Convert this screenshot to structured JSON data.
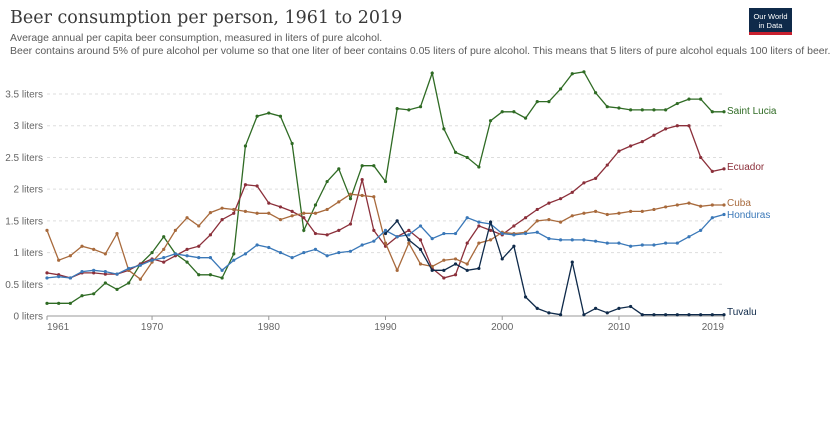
{
  "header": {
    "title": "Beer consumption per person, 1961 to 2019",
    "subtitle_1": "Average annual per capita beer consumption, measured in liters of pure alcohol.",
    "subtitle_2": "Beer contains around 5% of pure alcohol per volume so that one liter of beer contains 0.05 liters of pure alcohol. This means that 5 liters of pure alcohol equals 100 liters of beer."
  },
  "logo": {
    "line1": "Our World",
    "line2": "in Data",
    "bg": "#0f2a4a",
    "accent": "#c8202f"
  },
  "chart_data": {
    "type": "line",
    "title": "Beer consumption per person, 1961 to 2019",
    "xlim": [
      1961,
      2019
    ],
    "ylim": [
      0,
      3.8
    ],
    "x_ticks": [
      1961,
      1970,
      1980,
      1990,
      2000,
      2010,
      2019
    ],
    "y_ticks": [
      {
        "value": 0,
        "label": "0 liters"
      },
      {
        "value": 0.5,
        "label": "0.5 liters"
      },
      {
        "value": 1,
        "label": "1 liters"
      },
      {
        "value": 1.5,
        "label": "1.5 liters"
      },
      {
        "value": 2,
        "label": "2 liters"
      },
      {
        "value": 2.5,
        "label": "2.5 liters"
      },
      {
        "value": 3,
        "label": "3 liters"
      },
      {
        "value": 3.5,
        "label": "3.5 liters"
      }
    ],
    "grid": "horizontal-dashed",
    "legend": "end-of-line labels",
    "series": [
      {
        "name": "Saint Lucia",
        "color": "#2f6b24",
        "values": [
          0.2,
          0.2,
          0.2,
          0.32,
          0.35,
          0.52,
          0.42,
          0.52,
          0.82,
          1.0,
          1.25,
          0.98,
          0.85,
          0.65,
          0.65,
          0.6,
          0.98,
          2.68,
          3.15,
          3.2,
          3.15,
          2.72,
          1.35,
          1.75,
          2.12,
          2.32,
          1.85,
          2.37,
          2.37,
          2.12,
          3.27,
          3.25,
          3.3,
          3.83,
          2.95,
          2.58,
          2.5,
          2.35,
          3.08,
          3.22,
          3.22,
          3.12,
          3.38,
          3.38,
          3.58,
          3.82,
          3.85,
          3.52,
          3.3,
          3.28,
          3.25,
          3.25,
          3.25,
          3.25,
          3.35,
          3.42,
          3.42,
          3.22,
          3.22
        ]
      },
      {
        "name": "Ecuador",
        "color": "#8b2f3a",
        "values": [
          0.68,
          0.65,
          0.6,
          0.68,
          0.68,
          0.66,
          0.66,
          0.72,
          0.82,
          0.9,
          0.85,
          0.95,
          1.05,
          1.1,
          1.28,
          1.52,
          1.62,
          2.07,
          2.05,
          1.78,
          1.72,
          1.65,
          1.55,
          1.3,
          1.28,
          1.35,
          1.45,
          2.15,
          1.35,
          1.1,
          1.25,
          1.35,
          1.2,
          0.75,
          0.6,
          0.65,
          1.15,
          1.42,
          1.35,
          1.28,
          1.42,
          1.55,
          1.68,
          1.78,
          1.85,
          1.95,
          2.1,
          2.17,
          2.38,
          2.6,
          2.68,
          2.75,
          2.85,
          2.95,
          3.0,
          3.0,
          2.5,
          2.28,
          2.32
        ]
      },
      {
        "name": "Cuba",
        "color": "#a86a3c",
        "values": [
          1.35,
          0.88,
          0.95,
          1.1,
          1.05,
          0.98,
          1.3,
          0.72,
          0.58,
          0.85,
          1.05,
          1.35,
          1.55,
          1.42,
          1.63,
          1.7,
          1.68,
          1.65,
          1.62,
          1.62,
          1.52,
          1.58,
          1.62,
          1.62,
          1.68,
          1.8,
          1.92,
          1.9,
          1.88,
          1.15,
          0.72,
          1.15,
          0.82,
          0.78,
          0.88,
          0.9,
          0.82,
          1.15,
          1.2,
          1.32,
          1.3,
          1.32,
          1.5,
          1.52,
          1.48,
          1.58,
          1.62,
          1.65,
          1.6,
          1.62,
          1.65,
          1.65,
          1.68,
          1.72,
          1.75,
          1.78,
          1.73,
          1.75,
          1.75
        ]
      },
      {
        "name": "Honduras",
        "color": "#3a78b8",
        "values": [
          0.6,
          0.62,
          0.6,
          0.7,
          0.72,
          0.7,
          0.66,
          0.75,
          0.8,
          0.88,
          0.92,
          0.98,
          0.95,
          0.92,
          0.92,
          0.72,
          0.88,
          0.98,
          1.12,
          1.08,
          1.0,
          0.92,
          1.0,
          1.05,
          0.95,
          1.0,
          1.02,
          1.12,
          1.18,
          1.35,
          1.25,
          1.28,
          1.42,
          1.22,
          1.3,
          1.3,
          1.55,
          1.48,
          1.45,
          1.3,
          1.28,
          1.3,
          1.32,
          1.22,
          1.2,
          1.2,
          1.2,
          1.18,
          1.15,
          1.15,
          1.1,
          1.12,
          1.12,
          1.15,
          1.15,
          1.25,
          1.35,
          1.55,
          1.6
        ]
      },
      {
        "name": "Tuvalu",
        "color": "#0f2a4a",
        "values": [
          null,
          null,
          null,
          null,
          null,
          null,
          null,
          null,
          null,
          null,
          null,
          null,
          null,
          null,
          null,
          null,
          null,
          null,
          null,
          null,
          null,
          null,
          null,
          null,
          null,
          null,
          null,
          null,
          null,
          1.3,
          1.5,
          1.2,
          1.05,
          0.72,
          0.72,
          0.82,
          0.72,
          0.75,
          1.48,
          0.9,
          1.1,
          0.3,
          0.12,
          0.05,
          0.02,
          0.85,
          0.02,
          0.12,
          0.05,
          0.12,
          0.15,
          0.02,
          0.02,
          0.02,
          0.02,
          0.02,
          0.02,
          0.02,
          0.02
        ]
      }
    ]
  }
}
